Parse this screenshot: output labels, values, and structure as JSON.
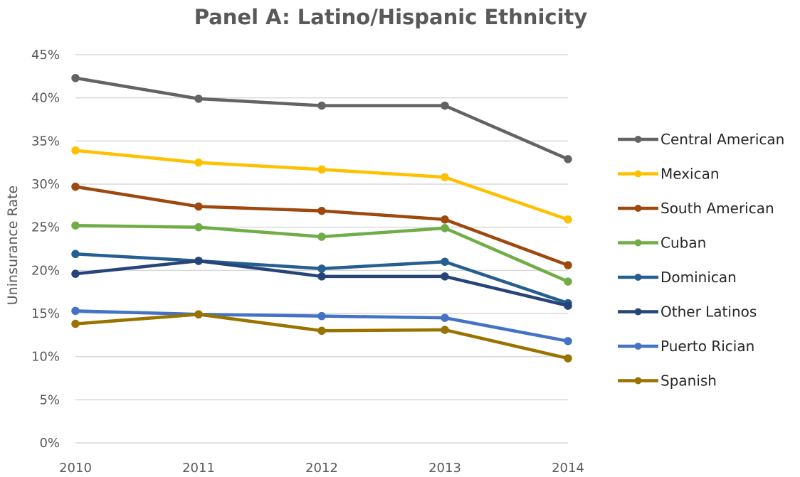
{
  "chart_data": {
    "type": "line",
    "title": "Panel A: Latino/Hispanic Ethnicity",
    "xlabel": "",
    "ylabel": "Uninsurance Rate",
    "x": [
      "2010",
      "2011",
      "2012",
      "2013",
      "2014"
    ],
    "ylim": [
      0,
      45
    ],
    "y_ticks": [
      "0%",
      "5%",
      "10%",
      "15%",
      "20%",
      "25%",
      "30%",
      "35%",
      "40%",
      "45%"
    ],
    "grid": true,
    "legend_position": "right",
    "series": [
      {
        "name": "Central American",
        "color": "#636363",
        "values": [
          42.3,
          39.9,
          39.1,
          39.1,
          32.9
        ]
      },
      {
        "name": "Mexican",
        "color": "#ffc000",
        "values": [
          33.9,
          32.5,
          31.7,
          30.8,
          25.9
        ]
      },
      {
        "name": "South American",
        "color": "#9e480e",
        "values": [
          29.7,
          27.4,
          26.9,
          25.9,
          20.6
        ]
      },
      {
        "name": "Cuban",
        "color": "#70ad47",
        "values": [
          25.2,
          25.0,
          23.9,
          24.9,
          18.7
        ]
      },
      {
        "name": "Dominican",
        "color": "#255e91",
        "values": [
          21.9,
          21.1,
          20.2,
          21.0,
          16.2
        ]
      },
      {
        "name": "Other Latinos",
        "color": "#264478",
        "values": [
          19.6,
          21.1,
          19.3,
          19.3,
          15.9
        ]
      },
      {
        "name": "Puerto Rician",
        "color": "#4472c4",
        "values": [
          15.3,
          14.9,
          14.7,
          14.5,
          11.8
        ]
      },
      {
        "name": "Spanish",
        "color": "#997300",
        "values": [
          13.8,
          14.9,
          13.0,
          13.1,
          9.8
        ]
      }
    ]
  }
}
